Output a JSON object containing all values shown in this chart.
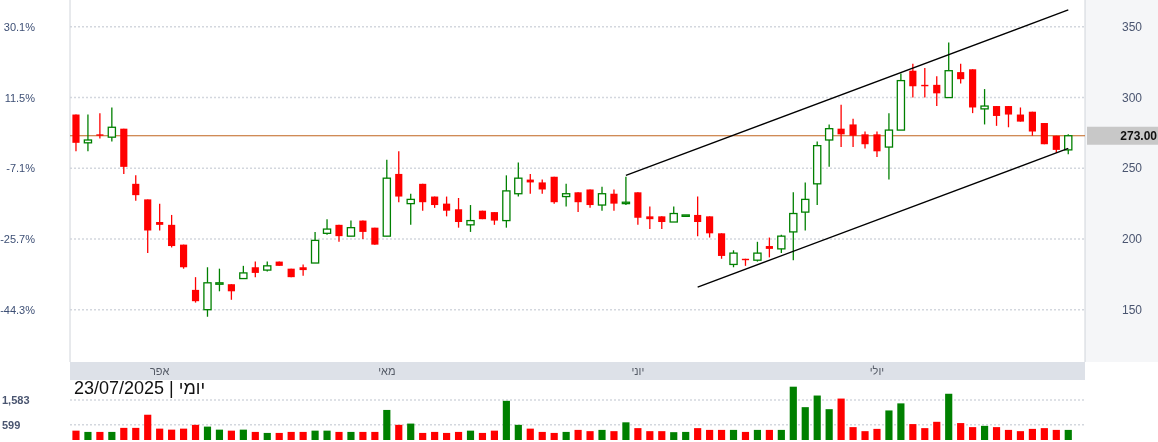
{
  "chart_data": [
    {
      "type": "candlestick",
      "categories": [
        null,
        null,
        null,
        null,
        null,
        null,
        null,
        "אפר",
        null,
        null,
        null,
        null,
        null,
        null,
        null,
        null,
        null,
        null,
        null,
        null,
        null,
        null,
        null,
        null,
        null,
        null,
        "מאי",
        null,
        null,
        null,
        null,
        null,
        null,
        null,
        null,
        null,
        null,
        null,
        null,
        null,
        null,
        null,
        null,
        null,
        null,
        null,
        null,
        "יוני",
        null,
        null,
        null,
        null,
        null,
        null,
        null,
        null,
        null,
        null,
        null,
        null,
        null,
        null,
        null,
        null,
        null,
        null,
        null,
        "יולי",
        null,
        null,
        null,
        null,
        null,
        null,
        null,
        null,
        null,
        null,
        null,
        null,
        null,
        null,
        null,
        null
      ],
      "ylim": [
        113,
        369
      ],
      "yticks": [
        150,
        200,
        250,
        300,
        350
      ],
      "y2lim": [
        -58.1,
        37.2
      ],
      "y2ticks": [
        {
          "value": 30.1,
          "label": "30.1%"
        },
        {
          "value": 11.5,
          "label": "11.5%"
        },
        {
          "value": -7.1,
          "label": "-7.1%"
        },
        {
          "value": -25.7,
          "label": "-25.7%"
        },
        {
          "value": -44.3,
          "label": "-44.3%"
        }
      ],
      "grid": "y",
      "ref_lines": [
        {
          "axis": "y",
          "value": 273,
          "label": "273.00",
          "color": "#c0651e"
        }
      ],
      "series": [
        {
          "type": "candlestick",
          "ohlc": [
            [
              288,
              288,
              262,
              268
            ],
            [
              268,
              288,
              262,
              270
            ],
            [
              274,
              289,
              271,
              273
            ],
            [
              272,
              293,
              269,
              279
            ],
            [
              278,
              278,
              246,
              251
            ],
            [
              239,
              245,
              227,
              231
            ],
            [
              228,
              228,
              190,
              206
            ],
            [
              212,
              225,
              206,
              210
            ],
            [
              210,
              217,
              194,
              195
            ],
            [
              196,
              196,
              179,
              180
            ],
            [
              164,
              173,
              155,
              156
            ],
            [
              150,
              180,
              145,
              169
            ],
            [
              168,
              179,
              163,
              169
            ],
            [
              168,
              168,
              157,
              163
            ],
            [
              172,
              181,
              172,
              176
            ],
            [
              180,
              184,
              173,
              176
            ],
            [
              178,
              184,
              177,
              181
            ],
            [
              184,
              184,
              181,
              181
            ],
            [
              179,
              179,
              173,
              173
            ],
            [
              180,
              182,
              174,
              178
            ],
            [
              183,
              205,
              183,
              199
            ],
            [
              204,
              214,
              203,
              207
            ],
            [
              210,
              210,
              198,
              202
            ],
            [
              202,
              213,
              202,
              208
            ],
            [
              213,
              213,
              200,
              205
            ],
            [
              208,
              208,
              196,
              196
            ],
            [
              202,
              256,
              202,
              243
            ],
            [
              246,
              262,
              226,
              230
            ],
            [
              225,
              232,
              210,
              228
            ],
            [
              239,
              239,
              220,
              226
            ],
            [
              230,
              230,
              222,
              224
            ],
            [
              225,
              230,
              216,
              220
            ],
            [
              221,
              229,
              208,
              212
            ],
            [
              210,
              224,
              205,
              213
            ],
            [
              220,
              220,
              214,
              214
            ],
            [
              219,
              219,
              210,
              213
            ],
            [
              213,
              245,
              208,
              234
            ],
            [
              232,
              254,
              230,
              243
            ],
            [
              242,
              246,
              232,
              240
            ],
            [
              240,
              242,
              232,
              235
            ],
            [
              244,
              244,
              225,
              226
            ],
            [
              230,
              239,
              223,
              232
            ],
            [
              233,
              233,
              219,
              226
            ],
            [
              235,
              235,
              222,
              224
            ],
            [
              224,
              237,
              220,
              232
            ],
            [
              232,
              235,
              220,
              225
            ],
            [
              225,
              244,
              224,
              226
            ],
            [
              233,
              233,
              210,
              215
            ],
            [
              216,
              223,
              207,
              214
            ],
            [
              216,
              216,
              207,
              212
            ],
            [
              212,
              223,
              212,
              218
            ],
            [
              216,
              217,
              216,
              217
            ],
            [
              217,
              230,
              202,
              212
            ],
            [
              216,
              216,
              201,
              204
            ],
            [
              204,
              204,
              186,
              188
            ],
            [
              182,
              192,
              180,
              190
            ],
            [
              186,
              186,
              181,
              185
            ],
            [
              185,
              198,
              184,
              190
            ],
            [
              195,
              201,
              187,
              193
            ],
            [
              193,
              203,
              190,
              202
            ],
            [
              205,
              233,
              185,
              218
            ],
            [
              219,
              240,
              206,
              228
            ],
            [
              239,
              269,
              224,
              266
            ],
            [
              270,
              281,
              251,
              278
            ],
            [
              278,
              295,
              265,
              274
            ],
            [
              281,
              285,
              265,
              273
            ],
            [
              274,
              276,
              264,
              267
            ],
            [
              274,
              276,
              258,
              262
            ],
            [
              265,
              289,
              242,
              277
            ],
            [
              277,
              317,
              277,
              312
            ],
            [
              319,
              324,
              300,
              308
            ],
            [
              309,
              321,
              300,
              308
            ],
            [
              309,
              315,
              294,
              303
            ],
            [
              300,
              339,
              300,
              319
            ],
            [
              318,
              324,
              310,
              313
            ],
            [
              320,
              320,
              289,
              293
            ],
            [
              292,
              306,
              281,
              294
            ],
            [
              294,
              294,
              280,
              287
            ],
            [
              294,
              294,
              279,
              288
            ],
            [
              288,
              293,
              283,
              283
            ],
            [
              290,
              290,
              273,
              276
            ],
            [
              282,
              282,
              267,
              267
            ],
            [
              273,
              273,
              261,
              263
            ],
            [
              263,
              274,
              260,
              273
            ]
          ],
          "colors": [
            "#ff0000",
            "#008000",
            "#ff0000",
            "#008000",
            "#ff0000",
            "#ff0000",
            "#ff0000",
            "#ff0000",
            "#ff0000",
            "#ff0000",
            "#ff0000",
            "#008000",
            "#008000",
            "#ff0000",
            "#008000",
            "#ff0000",
            "#008000",
            "#ff0000",
            "#ff0000",
            "#ff0000",
            "#008000",
            "#008000",
            "#ff0000",
            "#008000",
            "#ff0000",
            "#ff0000",
            "#008000",
            "#ff0000",
            "#008000",
            "#ff0000",
            "#ff0000",
            "#ff0000",
            "#ff0000",
            "#008000",
            "#ff0000",
            "#ff0000",
            "#008000",
            "#008000",
            "#ff0000",
            "#ff0000",
            "#ff0000",
            "#008000",
            "#ff0000",
            "#ff0000",
            "#008000",
            "#ff0000",
            "#008000",
            "#ff0000",
            "#ff0000",
            "#ff0000",
            "#008000",
            "#008000",
            "#ff0000",
            "#ff0000",
            "#ff0000",
            "#008000",
            "#ff0000",
            "#008000",
            "#ff0000",
            "#008000",
            "#008000",
            "#008000",
            "#008000",
            "#008000",
            "#ff0000",
            "#ff0000",
            "#ff0000",
            "#ff0000",
            "#008000",
            "#008000",
            "#ff0000",
            "#ff0000",
            "#ff0000",
            "#008000",
            "#ff0000",
            "#ff0000",
            "#008000",
            "#ff0000",
            "#ff0000",
            "#ff0000",
            "#ff0000",
            "#ff0000",
            "#ff0000",
            "#008000"
          ]
        },
        {
          "type": "line",
          "color": "#000000",
          "values": [
            null,
            null,
            null,
            null,
            null,
            null,
            null,
            null,
            null,
            null,
            null,
            null,
            null,
            null,
            null,
            null,
            null,
            null,
            null,
            null,
            null,
            null,
            null,
            null,
            null,
            null,
            null,
            null,
            null,
            null,
            null,
            null,
            null,
            null,
            null,
            null,
            null,
            null,
            null,
            null,
            null,
            null,
            null,
            null,
            null,
            null,
            245,
            null,
            null,
            null,
            null,
            null,
            null,
            null,
            null,
            null,
            null,
            null,
            null,
            null,
            null,
            null,
            null,
            null,
            null,
            null,
            null,
            null,
            null,
            null,
            null,
            null,
            null,
            null,
            null,
            null,
            null,
            null,
            null,
            null,
            null,
            null,
            null,
            362
          ]
        },
        {
          "type": "line",
          "color": "#000000",
          "values": [
            null,
            null,
            null,
            null,
            null,
            null,
            null,
            null,
            null,
            null,
            null,
            null,
            null,
            null,
            null,
            null,
            null,
            null,
            null,
            null,
            null,
            null,
            null,
            null,
            null,
            null,
            null,
            null,
            null,
            null,
            null,
            null,
            null,
            null,
            null,
            null,
            null,
            null,
            null,
            null,
            null,
            null,
            null,
            null,
            null,
            null,
            null,
            null,
            null,
            null,
            null,
            null,
            166,
            null,
            null,
            null,
            null,
            null,
            null,
            null,
            null,
            null,
            null,
            null,
            null,
            null,
            null,
            null,
            null,
            null,
            null,
            null,
            null,
            null,
            null,
            null,
            null,
            null,
            null,
            null,
            null,
            null,
            null,
            264
          ]
        }
      ]
    },
    {
      "type": "bar",
      "categories": [
        null,
        null,
        null,
        null,
        null,
        null,
        null,
        null,
        null,
        null,
        null,
        null,
        null,
        null,
        null,
        null,
        null,
        null,
        null,
        null,
        null,
        null,
        null,
        null,
        null,
        null,
        null,
        null,
        null,
        null,
        null,
        null,
        null,
        null,
        null,
        null,
        null,
        null,
        null,
        null,
        null,
        null,
        null,
        null,
        null,
        null,
        null,
        null,
        null,
        null,
        null,
        null,
        null,
        null,
        null,
        null,
        null,
        null,
        null,
        null,
        null,
        null,
        null,
        null,
        null,
        null,
        null,
        null,
        null,
        null,
        null,
        null,
        null,
        null,
        null,
        null,
        null,
        null,
        null,
        null,
        null,
        null,
        null,
        null
      ],
      "values": [
        370,
        320,
        320,
        320,
        480,
        480,
        1000,
        450,
        410,
        450,
        600,
        530,
        410,
        370,
        410,
        320,
        280,
        280,
        320,
        320,
        370,
        370,
        320,
        320,
        320,
        320,
        1190,
        600,
        650,
        280,
        320,
        280,
        320,
        370,
        280,
        370,
        1550,
        600,
        450,
        320,
        280,
        320,
        400,
        350,
        400,
        350,
        700,
        470,
        350,
        350,
        310,
        320,
        470,
        400,
        400,
        400,
        320,
        400,
        400,
        400,
        2110,
        1300,
        1760,
        1220,
        1640,
        510,
        350,
        440,
        1170,
        1450,
        630,
        470,
        720,
        1830,
        670,
        510,
        560,
        510,
        400,
        350,
        440,
        470,
        400,
        400
      ],
      "colors": [
        "#ff0000",
        "#008000",
        "#ff0000",
        "#008000",
        "#ff0000",
        "#ff0000",
        "#ff0000",
        "#ff0000",
        "#ff0000",
        "#ff0000",
        "#ff0000",
        "#008000",
        "#008000",
        "#ff0000",
        "#008000",
        "#ff0000",
        "#008000",
        "#ff0000",
        "#ff0000",
        "#ff0000",
        "#008000",
        "#008000",
        "#ff0000",
        "#008000",
        "#ff0000",
        "#ff0000",
        "#008000",
        "#ff0000",
        "#008000",
        "#ff0000",
        "#ff0000",
        "#ff0000",
        "#ff0000",
        "#008000",
        "#ff0000",
        "#ff0000",
        "#008000",
        "#008000",
        "#ff0000",
        "#ff0000",
        "#ff0000",
        "#008000",
        "#ff0000",
        "#ff0000",
        "#008000",
        "#ff0000",
        "#008000",
        "#ff0000",
        "#ff0000",
        "#ff0000",
        "#008000",
        "#008000",
        "#ff0000",
        "#ff0000",
        "#ff0000",
        "#008000",
        "#ff0000",
        "#008000",
        "#ff0000",
        "#008000",
        "#008000",
        "#008000",
        "#008000",
        "#008000",
        "#ff0000",
        "#ff0000",
        "#ff0000",
        "#ff0000",
        "#008000",
        "#008000",
        "#ff0000",
        "#ff0000",
        "#ff0000",
        "#008000",
        "#ff0000",
        "#ff0000",
        "#008000",
        "#ff0000",
        "#ff0000",
        "#ff0000",
        "#ff0000",
        "#ff0000",
        "#ff0000",
        "#008000"
      ],
      "ylim": [
        0,
        2177
      ],
      "yticks": [
        {
          "value": 1583,
          "label": "1,583"
        },
        599
      ],
      "grid": "y",
      "annotations": [
        "יומי | 23/07/2025"
      ]
    }
  ]
}
